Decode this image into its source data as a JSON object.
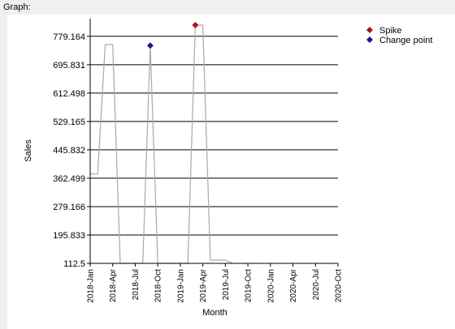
{
  "window": {
    "graph_label": "Graph:"
  },
  "chart_data": {
    "type": "line",
    "title": "",
    "xlabel": "Month",
    "ylabel": "Sales",
    "x_ticks": [
      "2018-Jan",
      "2018-Apr",
      "2018-Jul",
      "2018-Oct",
      "2019-Jan",
      "2019-Apr",
      "2019-Jul",
      "2019-Oct",
      "2020-Jan",
      "2020-Apr",
      "2020-Jul",
      "2020-Oct"
    ],
    "y_ticks": [
      "112.5",
      "195.833",
      "279.166",
      "362.499",
      "445.832",
      "529.165",
      "612.498",
      "695.831",
      "779.164"
    ],
    "ylim": [
      112.5,
      812
    ],
    "x_months": [
      0,
      33
    ],
    "grid": {
      "horizontal": true,
      "vertical": false
    },
    "legend_position": "top-right",
    "series": [
      {
        "name": "",
        "color": "#a9a9a9",
        "points": [
          {
            "x": "2018-Jan",
            "y": 375
          },
          {
            "x": "2018-Feb",
            "y": 375
          },
          {
            "x": "2018-Mar",
            "y": 755
          },
          {
            "x": "2018-Apr",
            "y": 755
          },
          {
            "x": "2018-May",
            "y": 112.5
          },
          {
            "x": "2018-Jun",
            "y": 112.5
          },
          {
            "x": "2018-Jul",
            "y": 112.5
          },
          {
            "x": "2018-Aug",
            "y": 112.5
          },
          {
            "x": "2018-Sep",
            "y": 752
          },
          {
            "x": "2018-Oct",
            "y": 112.5
          },
          {
            "x": "2018-Nov",
            "y": 112.5
          },
          {
            "x": "2018-Dec",
            "y": 112.5
          },
          {
            "x": "2019-Jan",
            "y": 112.5
          },
          {
            "x": "2019-Feb",
            "y": 112.5
          },
          {
            "x": "2019-Mar",
            "y": 812
          },
          {
            "x": "2019-Apr",
            "y": 812
          },
          {
            "x": "2019-May",
            "y": 122
          },
          {
            "x": "2019-Jun",
            "y": 122
          },
          {
            "x": "2019-Jul",
            "y": 122
          },
          {
            "x": "2019-Aug",
            "y": 112.5
          }
        ]
      }
    ],
    "markers": [
      {
        "name": "Spike",
        "x": "2019-Mar",
        "y": 812,
        "color": "#b01020"
      },
      {
        "name": "Change point",
        "x": "2018-Sep",
        "y": 752,
        "color": "#1a1a8c"
      }
    ]
  }
}
